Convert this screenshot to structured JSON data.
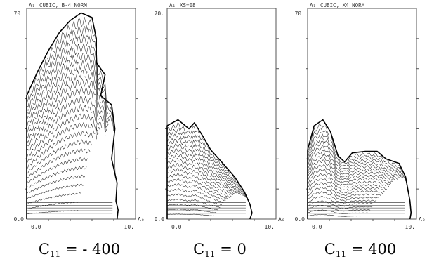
{
  "chart_data": [
    {
      "type": "contour",
      "title": "CUBIC, B-4 NORM",
      "ylabel": "A₁",
      "xlabel": "A₀",
      "ylim": [
        0,
        70
      ],
      "xlim": [
        0,
        10
      ],
      "ytick_labels": [
        "70.",
        "0.0"
      ],
      "xtick_labels": [
        "0.0",
        "10."
      ],
      "caption": {
        "main": "C",
        "sub": "11",
        "rest": " = - 400"
      },
      "outline": [
        [
          0,
          0
        ],
        [
          0,
          41
        ],
        [
          1,
          49
        ],
        [
          2,
          56
        ],
        [
          3,
          62
        ],
        [
          4,
          66
        ],
        [
          5,
          68.5
        ],
        [
          6,
          67
        ],
        [
          6.4,
          60
        ],
        [
          6.4,
          52
        ],
        [
          7.2,
          48
        ],
        [
          6.8,
          41
        ],
        [
          7.8,
          38
        ],
        [
          8.1,
          30
        ],
        [
          7.8,
          20
        ],
        [
          8.3,
          12
        ],
        [
          8.2,
          6
        ],
        [
          8.4,
          3
        ],
        [
          8.3,
          0
        ]
      ],
      "contour_levels": 24
    },
    {
      "type": "contour",
      "title": "XS=08",
      "ylabel": "A₁",
      "xlabel": "A₀",
      "ylim": [
        0,
        70
      ],
      "xlim": [
        0,
        10
      ],
      "ytick_labels": [
        "70.",
        "0.0"
      ],
      "xtick_labels": [
        "0.0",
        "10."
      ],
      "caption": {
        "main": "C",
        "sub": "11",
        "rest": " = 0"
      },
      "outline": [
        [
          0,
          0
        ],
        [
          0,
          31
        ],
        [
          1,
          33
        ],
        [
          2,
          30
        ],
        [
          2.5,
          32
        ],
        [
          3.2,
          28
        ],
        [
          4,
          23
        ],
        [
          5,
          19
        ],
        [
          6.2,
          14
        ],
        [
          7.1,
          9
        ],
        [
          7.6,
          5
        ],
        [
          7.8,
          2
        ],
        [
          7.6,
          0
        ]
      ],
      "contour_levels": 20
    },
    {
      "type": "contour",
      "title": "CUBIC, X4 NORM",
      "ylabel": "A₁",
      "xlabel": "A₀",
      "ylim": [
        0,
        70
      ],
      "xlim": [
        0,
        10
      ],
      "ytick_labels": [
        "70.",
        "0.0"
      ],
      "xtick_labels": [
        "0.0",
        "10."
      ],
      "caption": {
        "main": "C",
        "sub": "11",
        "rest": " = 400"
      },
      "outline": [
        [
          0,
          0
        ],
        [
          0,
          23
        ],
        [
          0.6,
          31
        ],
        [
          1.4,
          33
        ],
        [
          2.1,
          29
        ],
        [
          2.8,
          21
        ],
        [
          3.4,
          19
        ],
        [
          4.1,
          22
        ],
        [
          5.3,
          22.5
        ],
        [
          6.4,
          22.5
        ],
        [
          7.2,
          20
        ],
        [
          8.4,
          18.5
        ],
        [
          9.0,
          14
        ],
        [
          9.4,
          6
        ],
        [
          9.5,
          2
        ],
        [
          9.4,
          0
        ]
      ],
      "contour_levels": 22
    }
  ]
}
